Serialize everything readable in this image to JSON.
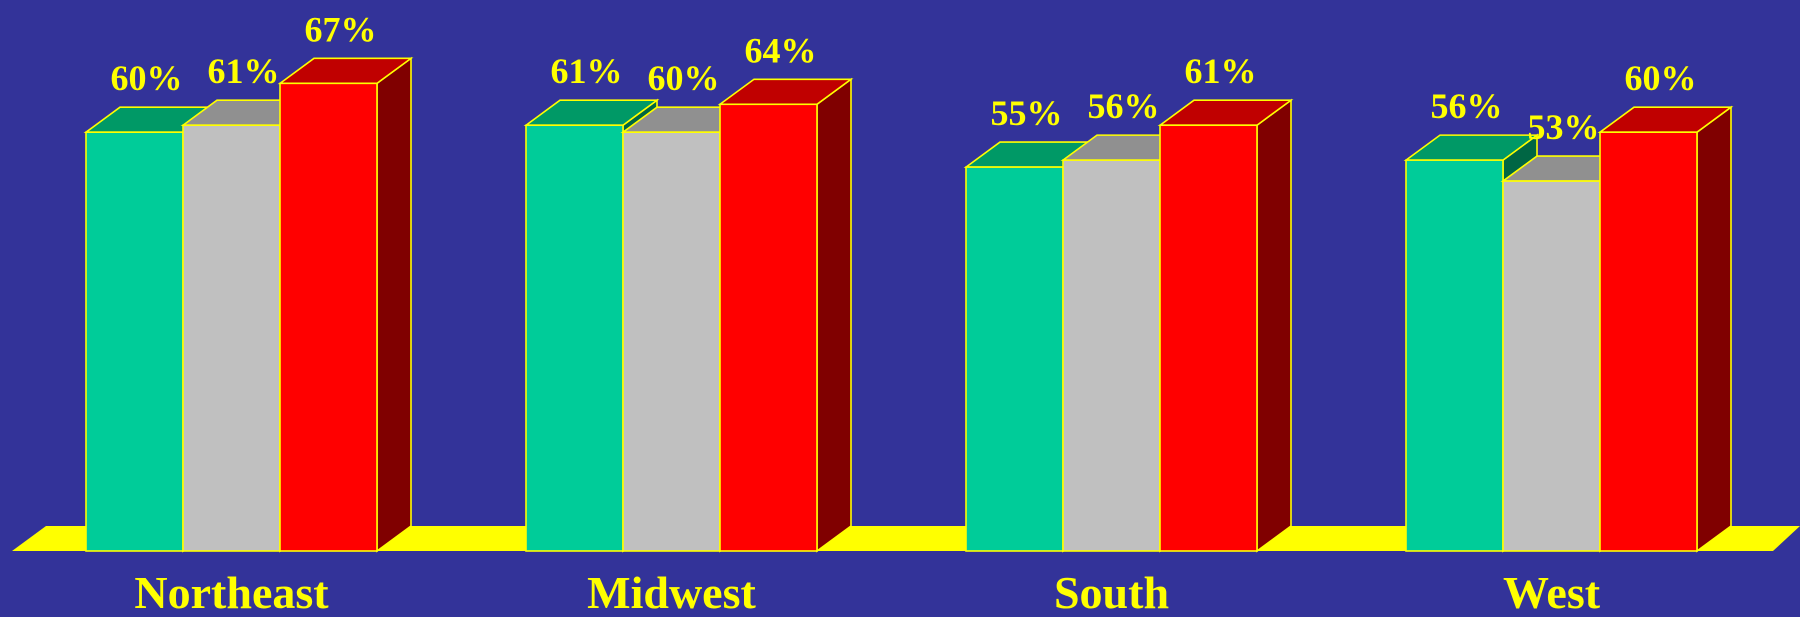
{
  "colors": {
    "background": "#333399",
    "floor": "#FFFF00",
    "outline": "#FFFF00",
    "label": "#FFFF00"
  },
  "chart_data": {
    "type": "bar",
    "style": "3d-clustered",
    "title": "",
    "xlabel": "",
    "ylabel": "",
    "ylim": [
      0,
      67
    ],
    "grid": false,
    "legend": "none",
    "categories": [
      "Northeast",
      "Midwest",
      "South",
      "West"
    ],
    "series": [
      {
        "values": [
          60,
          61,
          55,
          56
        ],
        "labels": [
          "60%",
          "61%",
          "55%",
          "56%"
        ],
        "color": "#00CC99",
        "top_color": "#009966",
        "side_color": "#006644"
      },
      {
        "values": [
          61,
          60,
          56,
          53
        ],
        "labels": [
          "61%",
          "60%",
          "56%",
          "53%"
        ],
        "color": "#C0C0C0",
        "top_color": "#909090",
        "side_color": "#707070"
      },
      {
        "values": [
          67,
          64,
          61,
          60
        ],
        "labels": [
          "67%",
          "64%",
          "61%",
          "60%"
        ],
        "color": "#FF0000",
        "top_color": "#C00000",
        "side_color": "#800000"
      }
    ]
  }
}
